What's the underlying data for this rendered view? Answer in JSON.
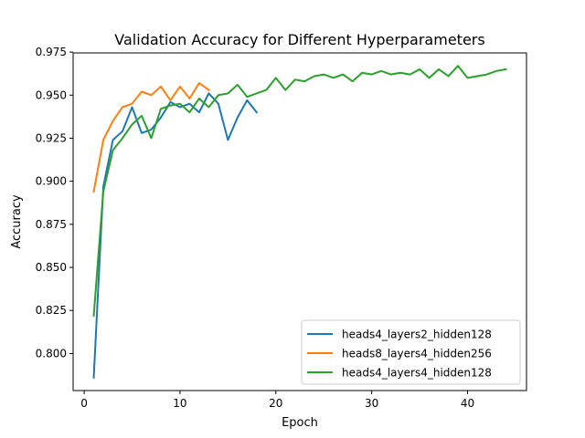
{
  "chart_data": {
    "type": "line",
    "title": "Validation Accuracy for Different Hyperparameters",
    "xlabel": "Epoch",
    "ylabel": "Accuracy",
    "xlim": [
      -1.15,
      46.15
    ],
    "ylim": [
      0.7785,
      0.9745
    ],
    "xticks": [
      0,
      10,
      20,
      30,
      40
    ],
    "yticks": [
      0.8,
      0.825,
      0.85,
      0.875,
      0.9,
      0.925,
      0.95,
      0.975
    ],
    "ytick_labels": [
      "0.800",
      "0.825",
      "0.850",
      "0.875",
      "0.900",
      "0.925",
      "0.950",
      "0.975"
    ],
    "legend_position": "lower-right",
    "grid": false,
    "series": [
      {
        "name": "heads4_layers2_hidden128",
        "color": "#1f77b4",
        "x": [
          1,
          2,
          3,
          4,
          5,
          6,
          7,
          8,
          9,
          10,
          11,
          12,
          13,
          14,
          15,
          16,
          17,
          18
        ],
        "y": [
          0.786,
          0.897,
          0.924,
          0.929,
          0.943,
          0.928,
          0.93,
          0.937,
          0.946,
          0.943,
          0.945,
          0.94,
          0.951,
          0.945,
          0.924,
          0.937,
          0.947,
          0.94
        ]
      },
      {
        "name": "heads8_layers4_hidden256",
        "color": "#ff7f0e",
        "x": [
          1,
          2,
          3,
          4,
          5,
          6,
          7,
          8,
          9,
          10,
          11,
          12,
          13
        ],
        "y": [
          0.894,
          0.924,
          0.935,
          0.943,
          0.945,
          0.952,
          0.95,
          0.955,
          0.947,
          0.955,
          0.948,
          0.957,
          0.953
        ]
      },
      {
        "name": "heads4_layers4_hidden128",
        "color": "#2ca02c",
        "x": [
          1,
          2,
          3,
          4,
          5,
          6,
          7,
          8,
          9,
          10,
          11,
          12,
          13,
          14,
          15,
          16,
          17,
          18,
          19,
          20,
          21,
          22,
          23,
          24,
          25,
          26,
          27,
          28,
          29,
          30,
          31,
          32,
          33,
          34,
          35,
          36,
          37,
          38,
          39,
          40,
          41,
          42,
          43,
          44
        ],
        "y": [
          0.822,
          0.894,
          0.918,
          0.925,
          0.933,
          0.938,
          0.925,
          0.942,
          0.944,
          0.945,
          0.94,
          0.948,
          0.943,
          0.95,
          0.951,
          0.956,
          0.949,
          0.951,
          0.953,
          0.96,
          0.953,
          0.959,
          0.958,
          0.961,
          0.962,
          0.96,
          0.962,
          0.958,
          0.963,
          0.962,
          0.964,
          0.962,
          0.963,
          0.962,
          0.965,
          0.96,
          0.965,
          0.961,
          0.967,
          0.96,
          0.961,
          0.962,
          0.964,
          0.965
        ]
      }
    ]
  }
}
